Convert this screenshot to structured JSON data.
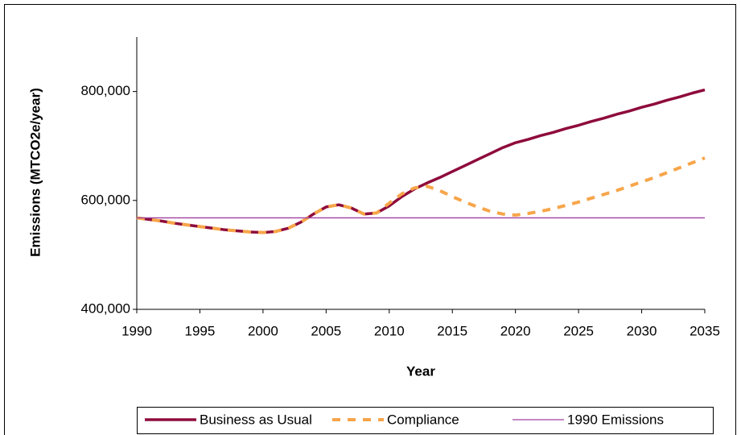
{
  "chart_data": {
    "type": "line",
    "x_label": "Year",
    "y_label": "Emissions (MTCO2e/year)",
    "x": [
      1990,
      1991,
      1992,
      1993,
      1994,
      1995,
      1996,
      1997,
      1998,
      1999,
      2000,
      2001,
      2002,
      2003,
      2004,
      2005,
      2006,
      2007,
      2008,
      2009,
      2010,
      2011,
      2012,
      2013,
      2014,
      2015,
      2016,
      2017,
      2018,
      2019,
      2020,
      2021,
      2022,
      2023,
      2024,
      2025,
      2026,
      2027,
      2028,
      2029,
      2030,
      2031,
      2032,
      2033,
      2034,
      2035
    ],
    "series": [
      {
        "name": "Business as Usual",
        "color": "#8e0b3c",
        "dash": "solid",
        "values": [
          568000,
          565000,
          562000,
          558000,
          555000,
          552000,
          549000,
          546000,
          544000,
          542000,
          541000,
          543000,
          549000,
          560000,
          575000,
          588000,
          592000,
          586000,
          575000,
          577000,
          590000,
          607000,
          621000,
          632000,
          642000,
          653000,
          664000,
          675000,
          686000,
          697000,
          706000,
          712000,
          719000,
          725000,
          732000,
          738000,
          745000,
          751000,
          758000,
          764000,
          771000,
          777000,
          784000,
          790000,
          797000,
          803000
        ]
      },
      {
        "name": "Compliance",
        "color": "#f7a54a",
        "dash": "dashed",
        "values": [
          568000,
          565000,
          562000,
          558000,
          555000,
          552000,
          549000,
          546000,
          544000,
          542000,
          541000,
          543000,
          549000,
          560000,
          575000,
          588000,
          592000,
          586000,
          575000,
          577000,
          595000,
          612000,
          623000,
          626000,
          618000,
          607000,
          597000,
          588000,
          580000,
          575000,
          573000,
          576000,
          580000,
          585000,
          591000,
          597000,
          604000,
          611000,
          618000,
          626000,
          634000,
          642000,
          651000,
          660000,
          669000,
          678000
        ]
      },
      {
        "name": "1990 Emissions",
        "color": "#a040a0",
        "dash": "thin",
        "values": [
          568000,
          568000,
          568000,
          568000,
          568000,
          568000,
          568000,
          568000,
          568000,
          568000,
          568000,
          568000,
          568000,
          568000,
          568000,
          568000,
          568000,
          568000,
          568000,
          568000,
          568000,
          568000,
          568000,
          568000,
          568000,
          568000,
          568000,
          568000,
          568000,
          568000,
          568000,
          568000,
          568000,
          568000,
          568000,
          568000,
          568000,
          568000,
          568000,
          568000,
          568000,
          568000,
          568000,
          568000,
          568000,
          568000
        ]
      }
    ],
    "xlim": [
      1990,
      2035
    ],
    "xticks": [
      1990,
      1995,
      2000,
      2005,
      2010,
      2015,
      2020,
      2025,
      2030,
      2035
    ],
    "ylim": [
      400000,
      900000
    ],
    "yticks": [
      {
        "value": 400000,
        "label": "400,000"
      },
      {
        "value": 600000,
        "label": "600,000"
      },
      {
        "value": 800000,
        "label": "800,000"
      }
    ],
    "legend": "bottom"
  }
}
